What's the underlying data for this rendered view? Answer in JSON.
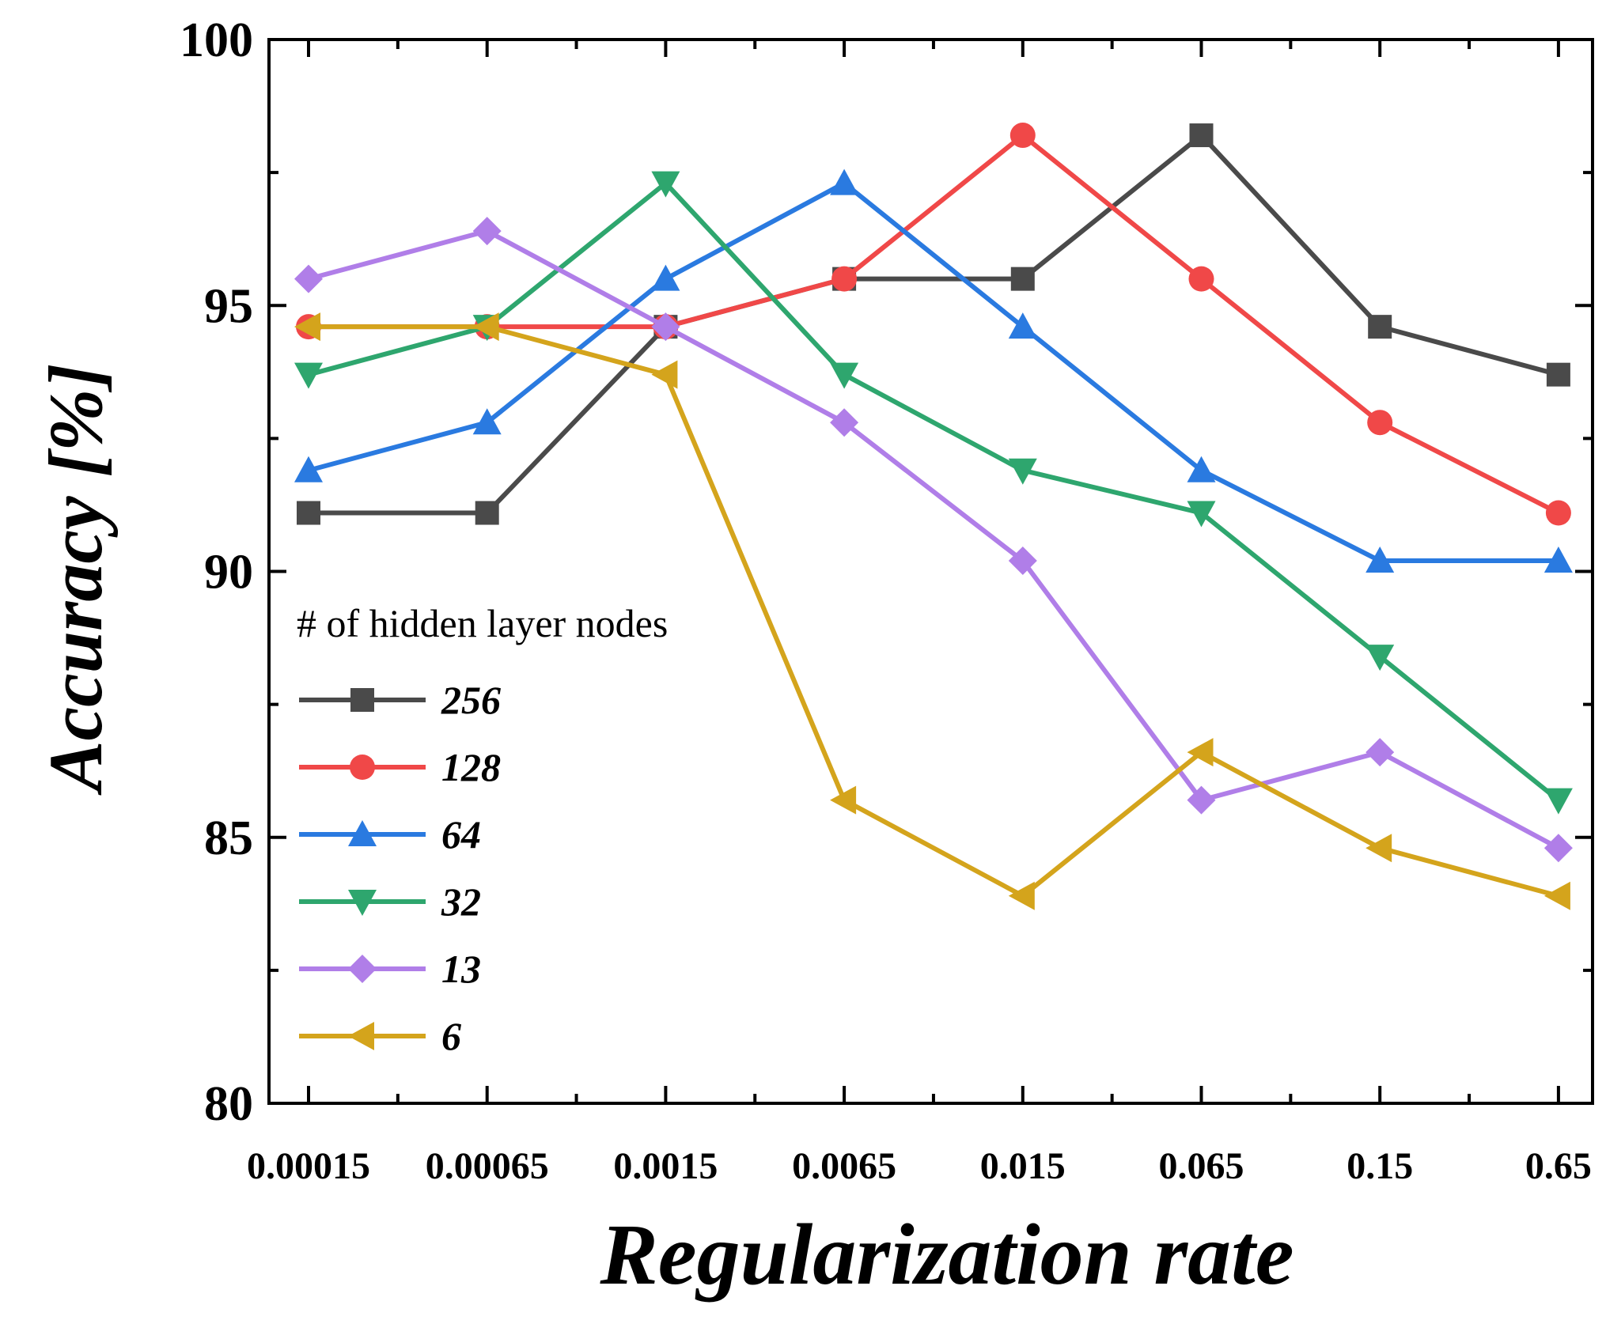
{
  "chart_data": {
    "type": "line",
    "title": "",
    "xlabel": "Regularization rate",
    "ylabel": "Accuracy [%]",
    "categories": [
      "0.00015",
      "0.00065",
      "0.0015",
      "0.0065",
      "0.015",
      "0.065",
      "0.15",
      "0.65"
    ],
    "ylim": [
      80,
      100
    ],
    "yticks": [
      80,
      85,
      90,
      95,
      100
    ],
    "legend_title": "# of hidden layer nodes",
    "legend_position": "lower-left",
    "series": [
      {
        "name": "256",
        "color": "#4a4a4a",
        "marker": "square",
        "values": [
          91.1,
          91.1,
          94.6,
          95.5,
          95.5,
          98.2,
          94.6,
          93.7
        ]
      },
      {
        "name": "128",
        "color": "#f04848",
        "marker": "circle",
        "values": [
          94.6,
          94.6,
          94.6,
          95.5,
          98.2,
          95.5,
          92.8,
          91.1
        ]
      },
      {
        "name": "64",
        "color": "#2a7ae0",
        "marker": "triangle-up",
        "values": [
          91.9,
          92.8,
          95.5,
          97.3,
          94.6,
          91.9,
          90.2,
          90.2
        ]
      },
      {
        "name": "32",
        "color": "#2ea66e",
        "marker": "triangle-down",
        "values": [
          93.7,
          94.6,
          97.3,
          93.7,
          91.9,
          91.1,
          88.4,
          85.7
        ]
      },
      {
        "name": "13",
        "color": "#b07ee8",
        "marker": "diamond",
        "values": [
          95.5,
          96.4,
          94.6,
          92.8,
          90.2,
          85.7,
          86.6,
          84.8
        ]
      },
      {
        "name": "6",
        "color": "#d4a41c",
        "marker": "triangle-left",
        "values": [
          94.6,
          94.6,
          93.7,
          85.7,
          83.9,
          86.6,
          84.8,
          83.9
        ]
      }
    ]
  }
}
